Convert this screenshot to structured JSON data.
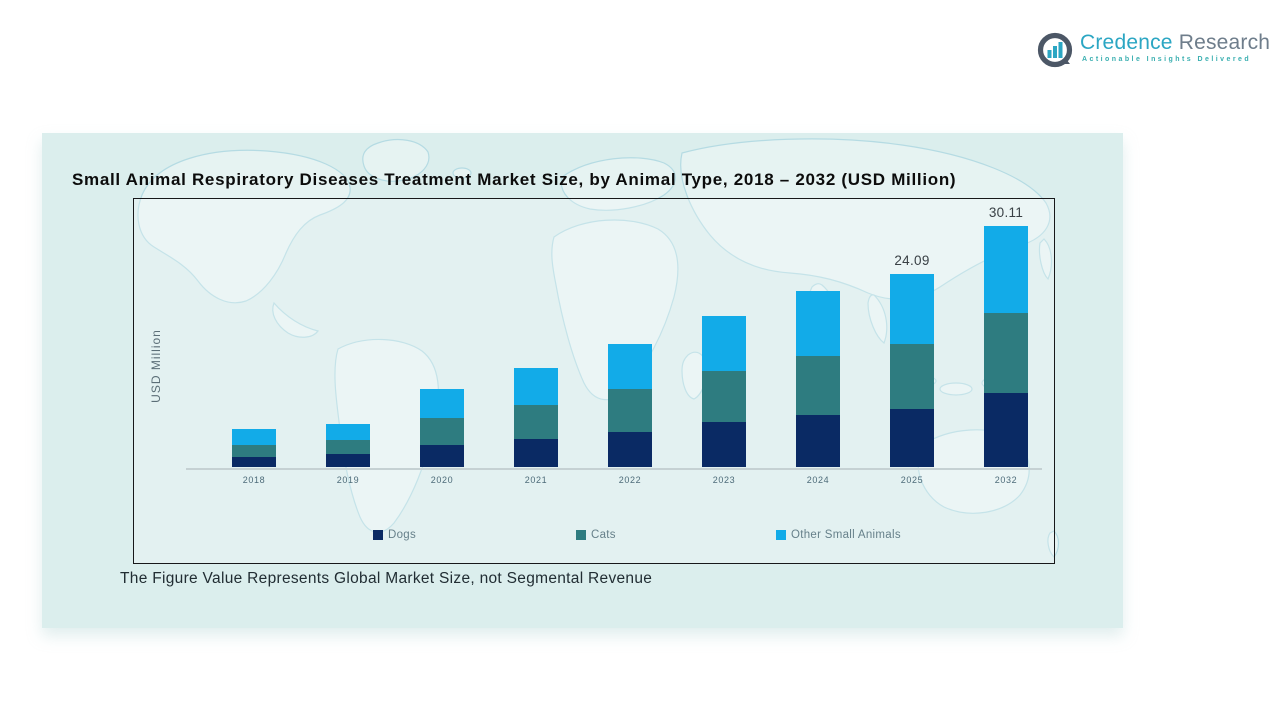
{
  "logo": {
    "brand_primary": "Credence",
    "brand_secondary": "Research",
    "tagline": "Actionable Insights Delivered",
    "colors": {
      "brand_primary": "#2ba6c3",
      "brand_secondary": "#6e7d8b",
      "tagline": "#3aafb0",
      "icon_ring": "#4c5766",
      "icon_bars": "#2ba6c3"
    }
  },
  "panel": {
    "background": "#dbeeed"
  },
  "chart_data": {
    "type": "bar",
    "stacked": true,
    "title": "Small Animal Respiratory Diseases Treatment Market Size, by Animal Type, 2018 – 2032 (USD Million)",
    "ylabel": "USD Million",
    "xlabel": "",
    "grid": false,
    "legend_position": "bottom",
    "categories": [
      "2018",
      "2019",
      "2020",
      "2021",
      "2022",
      "2023",
      "2024",
      "2025",
      "2032"
    ],
    "series": [
      {
        "name": "Dogs",
        "color": "#0a2a64",
        "values": [
          1.3,
          1.6,
          2.7,
          3.5,
          4.4,
          5.6,
          6.5,
          7.2,
          9.2
        ]
      },
      {
        "name": "Cats",
        "color": "#2e7c80",
        "values": [
          1.5,
          1.8,
          3.4,
          4.3,
          5.4,
          6.4,
          7.4,
          8.2,
          10.0
        ]
      },
      {
        "name": "Other Small Animals",
        "color": "#12abe8",
        "values": [
          1.9,
          2.0,
          3.6,
          4.6,
          5.6,
          6.9,
          8.1,
          8.69,
          10.91
        ]
      }
    ],
    "totals": [
      4.7,
      5.4,
      9.7,
      12.4,
      15.4,
      18.9,
      22.0,
      24.09,
      30.11
    ],
    "shown_total_labels": [
      "",
      "",
      "",
      "",
      "",
      "",
      "",
      "24.09",
      "30.11"
    ],
    "note": "The Figure Value Represents Global Market Size, not Segmental Revenue",
    "ylim": [
      0,
      33
    ]
  }
}
